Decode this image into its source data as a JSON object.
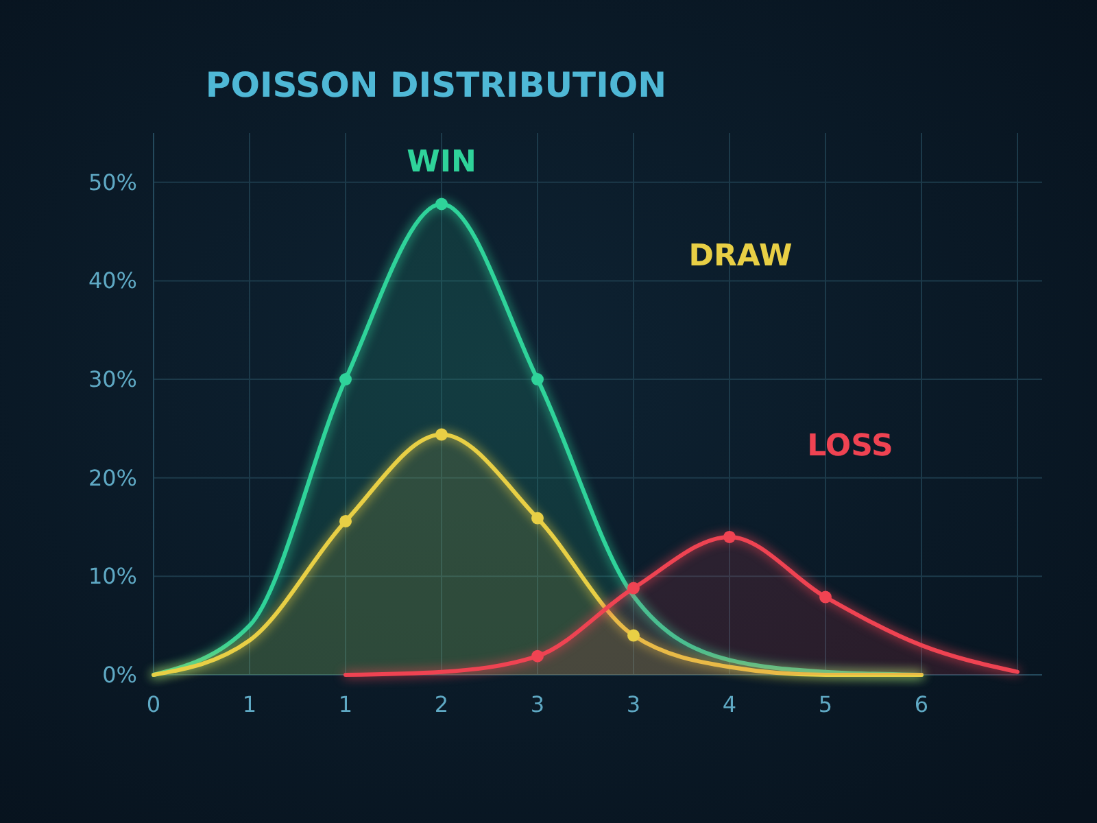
{
  "chart_data": {
    "type": "area",
    "title": "POISSON DISTRIBUTION",
    "categories": [
      "0",
      "1",
      "1",
      "2",
      "3",
      "3",
      "4",
      "5",
      "6",
      null
    ],
    "ylim": [
      0,
      55
    ],
    "yticks": [
      {
        "value": 0,
        "label": "0%"
      },
      {
        "value": 10,
        "label": "10%"
      },
      {
        "value": 20,
        "label": "20%"
      },
      {
        "value": 30,
        "label": "30%"
      },
      {
        "value": 40,
        "label": "40%"
      },
      {
        "value": 50,
        "label": "50%"
      }
    ],
    "grid": true,
    "line_style": "solid",
    "series": [
      {
        "name": "WIN",
        "color": "#2fd39a",
        "values": [
          0,
          5,
          30,
          47.8,
          30,
          8,
          1.5,
          0.3,
          0,
          null
        ]
      },
      {
        "name": "DRAW",
        "color": "#e8cf45",
        "values": [
          0,
          3.5,
          15.6,
          24.4,
          15.9,
          4,
          0.8,
          0,
          0,
          null
        ]
      },
      {
        "name": "LOSS",
        "color": "#ef4352",
        "values": [
          null,
          null,
          0,
          0.3,
          1.9,
          8.8,
          14,
          7.9,
          3,
          0.3
        ]
      },
      {
        "type": "scatter",
        "marker": "circle",
        "color": "#2fd39a",
        "values": [
          null,
          null,
          30,
          47.8,
          30,
          null,
          null,
          null,
          null,
          null
        ]
      },
      {
        "type": "scatter",
        "marker": "circle",
        "color": "#e8cf45",
        "values": [
          null,
          null,
          15.6,
          24.4,
          15.9,
          4,
          null,
          null,
          null,
          null
        ]
      },
      {
        "type": "scatter",
        "marker": "circle",
        "color": "#ef4352",
        "values": [
          null,
          null,
          null,
          null,
          1.9,
          8.8,
          14,
          7.9,
          null,
          null
        ]
      }
    ]
  }
}
